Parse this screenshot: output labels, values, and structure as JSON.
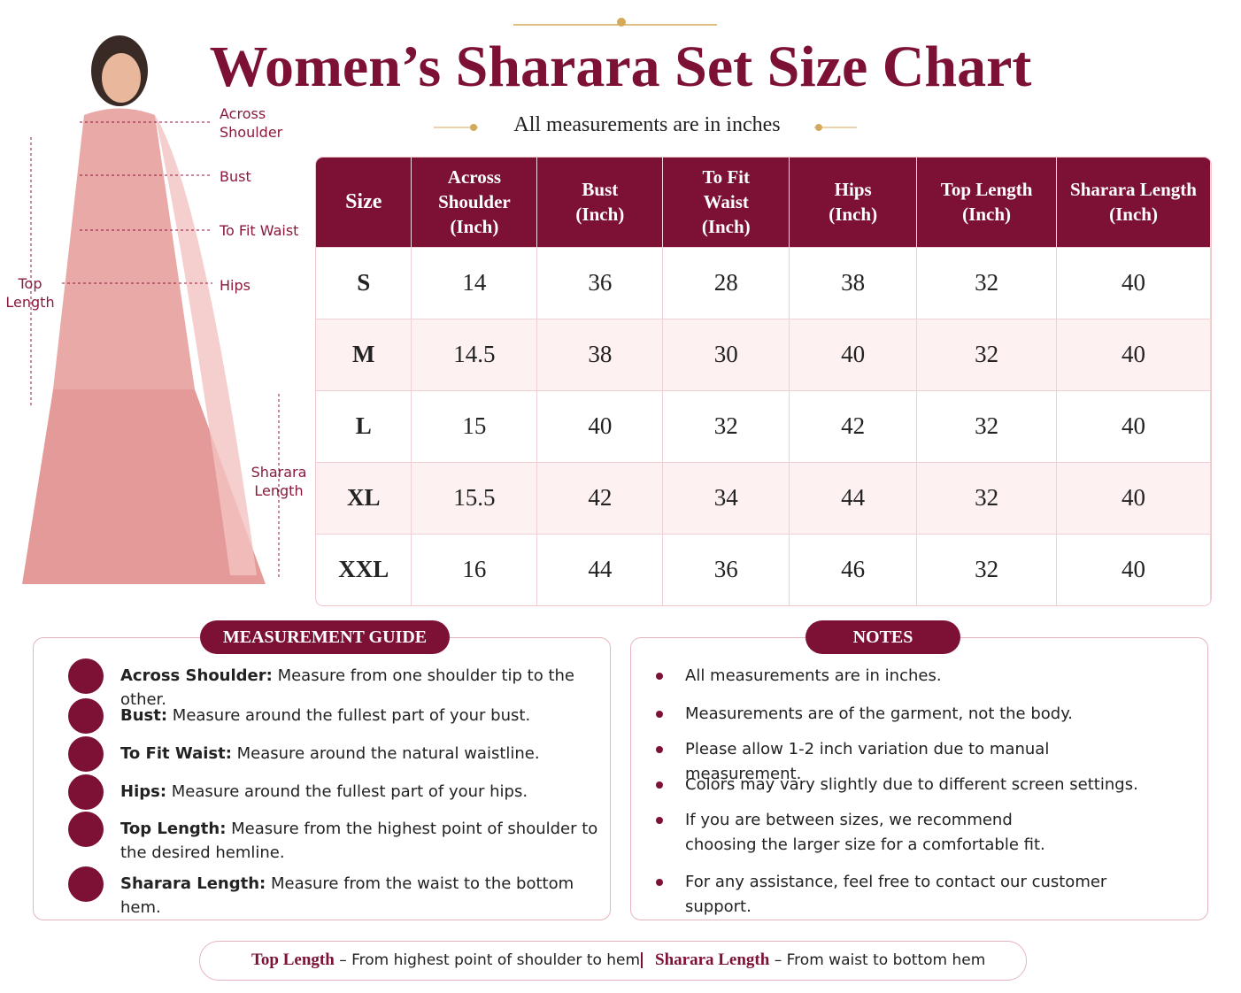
{
  "header": {
    "title": "Women’s Sharara Set Size Chart",
    "subtitle": "All measurements are in inches"
  },
  "figure_labels": {
    "across_shoulder": "Across Shoulder",
    "bust": "Bust",
    "waist": "To Fit Waist",
    "hips": "Hips",
    "top_length": "Top Length",
    "sharara_length": "Sharara Length"
  },
  "table": {
    "headers": [
      {
        "label": "Size"
      },
      {
        "label": "Across Shoulder",
        "unit": "(Inch)"
      },
      {
        "label": "Bust",
        "unit": "(Inch)"
      },
      {
        "label": "To Fit Waist",
        "unit": "(Inch)"
      },
      {
        "label": "Hips",
        "unit": "(Inch)"
      },
      {
        "label": "Top Length",
        "unit": "(Inch)"
      },
      {
        "label": "Sharara Length",
        "unit": "(Inch)"
      }
    ],
    "rows": [
      [
        "S",
        14,
        36,
        28,
        38,
        32,
        40
      ],
      [
        "M",
        14.5,
        38,
        30,
        40,
        32,
        40
      ],
      [
        "L",
        15,
        40,
        32,
        42,
        32,
        40
      ],
      [
        "XL",
        15.5,
        42,
        34,
        44,
        32,
        40
      ],
      [
        "XXL",
        16,
        44,
        36,
        46,
        32,
        40
      ]
    ]
  },
  "guide": {
    "title": "MEASUREMENT GUIDE",
    "items": [
      {
        "term": "Across Shoulder:",
        "text": "Measure from one shoulder tip to the other."
      },
      {
        "term": "Bust:",
        "text": "Measure around the fullest part of your bust."
      },
      {
        "term": "To Fit Waist:",
        "text": "Measure around the natural waistline."
      },
      {
        "term": "Hips:",
        "text": "Measure around the fullest part of your hips."
      },
      {
        "term": "Top Length:",
        "text": "Measure from the highest point of shoulder to the desired hemline."
      },
      {
        "term": "Sharara Length:",
        "text": "Measure from the waist to the bottom hem."
      }
    ]
  },
  "notes": {
    "title": "NOTES",
    "items": [
      "All measurements are in inches.",
      "Measurements are of the garment, not the body.",
      "Please allow 1-2 inch variation due to manual measurement.",
      "Colors may vary slightly due to different screen settings.",
      "If you are between sizes, we recommend choosing the larger size for a comfortable fit.",
      "For any assistance, feel free to contact our customer support."
    ]
  },
  "footer": {
    "items": [
      {
        "term": "Top Length",
        "text": "– From highest point of shoulder to hem"
      },
      {
        "term": "Sharara Length",
        "text": "– From waist to bottom hem"
      }
    ]
  }
}
